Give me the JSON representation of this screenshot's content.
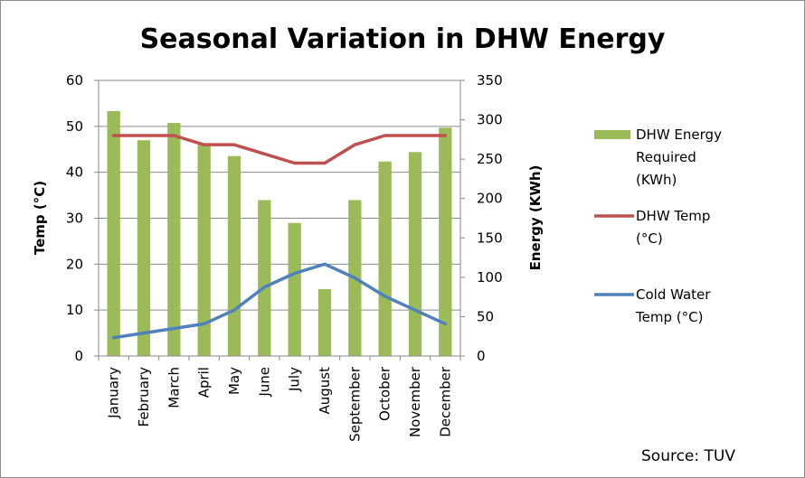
{
  "chart_data": {
    "type": "bar",
    "title": "Seasonal Variation in DHW Energy",
    "categories": [
      "January",
      "February",
      "March",
      "April",
      "May",
      "June",
      "July",
      "August",
      "September",
      "October",
      "November",
      "December"
    ],
    "y_left": {
      "label": "Temp (°C)",
      "range": [
        0,
        60
      ],
      "ticks": [
        "0",
        "10",
        "20",
        "30",
        "40",
        "50",
        "60"
      ]
    },
    "y_right": {
      "label": "Energy (KWh)",
      "range": [
        0,
        350
      ],
      "ticks": [
        "0",
        "50",
        "100",
        "150",
        "200",
        "250",
        "300",
        "350"
      ]
    },
    "series": [
      {
        "name": "DHW Energy Required (KWh)",
        "legend_lines": [
          "DHW Energy",
          "Required",
          "(KWh)"
        ],
        "kind": "bar",
        "axis": "right",
        "color": "#9bbb59",
        "values": [
          311,
          274,
          296,
          268,
          254,
          198,
          169,
          85,
          198,
          247,
          259,
          290
        ]
      },
      {
        "name": "DHW Temp (°C)",
        "legend_lines": [
          "DHW Temp",
          "(°C)"
        ],
        "kind": "line",
        "axis": "left",
        "color": "#c0504d",
        "values": [
          48,
          48,
          48,
          46,
          46,
          44,
          42,
          42,
          46,
          48,
          48,
          48
        ]
      },
      {
        "name": "Cold Water Temp (°C)",
        "legend_lines": [
          "Cold Water",
          "Temp (°C)"
        ],
        "kind": "line",
        "axis": "left",
        "color": "#4f81bd",
        "values": [
          4,
          5,
          6,
          7,
          10,
          15,
          18,
          20,
          17,
          13,
          10,
          7
        ]
      }
    ],
    "gridlines": true,
    "legend_position": "right",
    "source": "Source: TUV"
  }
}
